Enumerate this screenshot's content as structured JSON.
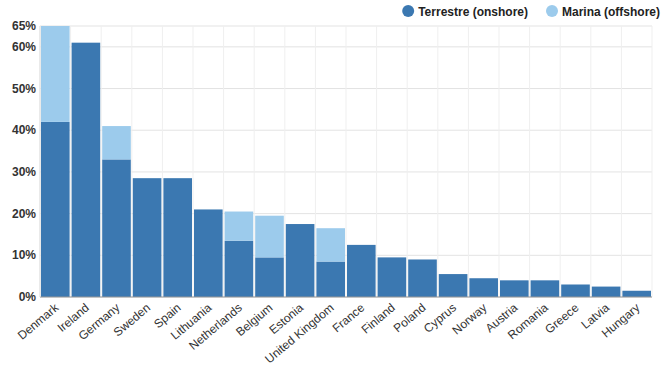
{
  "chart_data": {
    "type": "bar",
    "stacked": true,
    "grid": true,
    "legend": "top-right",
    "categories": [
      "Denmark",
      "Ireland",
      "Germany",
      "Sweden",
      "Spain",
      "Lithuania",
      "Netherlands",
      "Belgium",
      "Estonia",
      "United Kingdom",
      "France",
      "Finland",
      "Poland",
      "Cyprus",
      "Norway",
      "Austria",
      "Romania",
      "Greece",
      "Latvia",
      "Hungary"
    ],
    "series": [
      {
        "name": "Terrestre (onshore)",
        "color": "#3b78b1",
        "values": [
          42,
          61,
          33,
          28.5,
          28.5,
          21,
          13.5,
          9.5,
          17.5,
          8.5,
          12.5,
          9.5,
          9,
          5.5,
          4.5,
          4,
          4,
          3,
          2.5,
          1.5
        ]
      },
      {
        "name": "Marina (offshore)",
        "color": "#9ccbec",
        "values": [
          23,
          0,
          8,
          0,
          0,
          0,
          7,
          10,
          0,
          8,
          0,
          0,
          0,
          0,
          0,
          0,
          0,
          0,
          0,
          0
        ]
      }
    ],
    "ylim": [
      0,
      65
    ],
    "yticks": [
      {
        "value": 0,
        "label": "0%"
      },
      {
        "value": 10,
        "label": "10%"
      },
      {
        "value": 20,
        "label": "20%"
      },
      {
        "value": 30,
        "label": "30%"
      },
      {
        "value": 40,
        "label": "40%"
      },
      {
        "value": 50,
        "label": "50%"
      },
      {
        "value": 60,
        "label": "60%"
      },
      {
        "value": 65,
        "label": "65%"
      }
    ]
  }
}
